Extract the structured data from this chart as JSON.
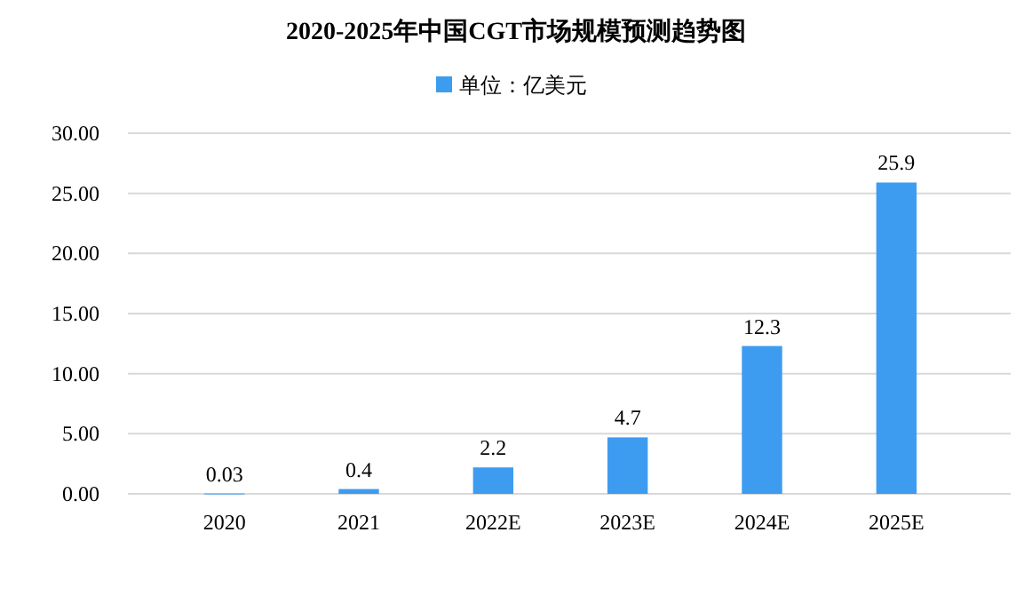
{
  "chart_data": {
    "type": "bar",
    "title": "2020-2025年中国CGT市场规模预测趋势图",
    "categories": [
      "2020",
      "2021",
      "2022E",
      "2023E",
      "2024E",
      "2025E"
    ],
    "series": [
      {
        "name": "单位：亿美元",
        "color": "#3d9cf0",
        "values": [
          0.03,
          0.4,
          2.2,
          4.7,
          12.3,
          25.9
        ]
      }
    ],
    "ylim": [
      0,
      30
    ],
    "yticks": [
      {
        "value": 0,
        "label": "0.00"
      },
      {
        "value": 5,
        "label": "5.00"
      },
      {
        "value": 10,
        "label": "10.00"
      },
      {
        "value": 15,
        "label": "15.00"
      },
      {
        "value": 20,
        "label": "20.00"
      },
      {
        "value": 25,
        "label": "25.00"
      },
      {
        "value": 30,
        "label": "30.00"
      }
    ],
    "grid": "y",
    "legend": "top",
    "data_labels": true
  }
}
